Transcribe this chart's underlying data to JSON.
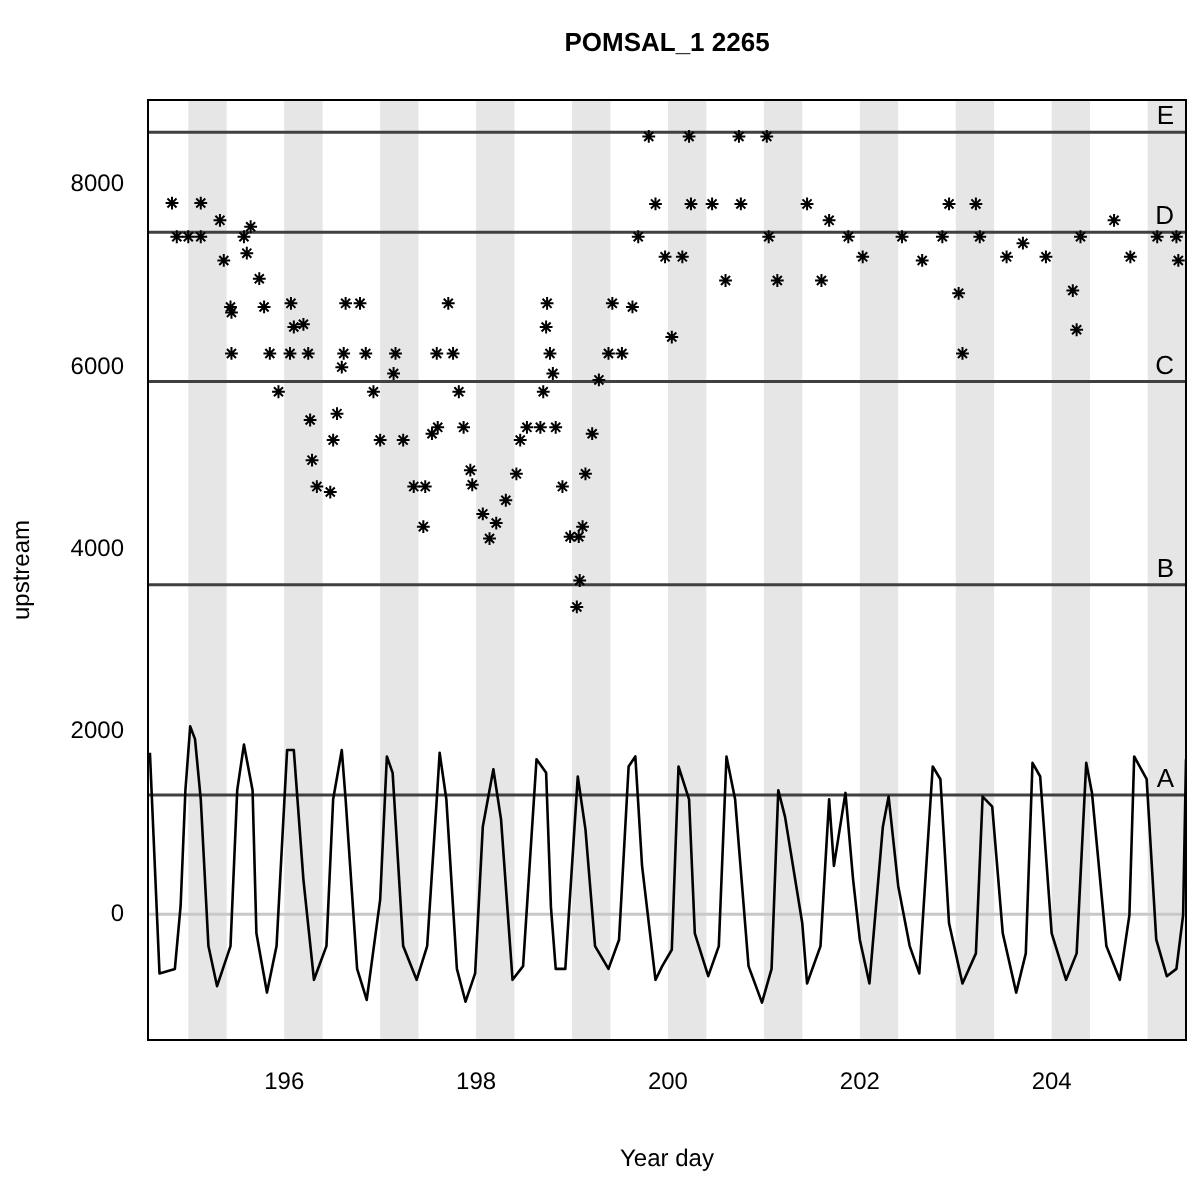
{
  "chart_data": {
    "type": "scatter",
    "title": "POMSAL_1 2265",
    "xlabel": "Year day",
    "ylabel": "upstream",
    "xlim": [
      194.58,
      205.4
    ],
    "xticks": [
      196,
      198,
      200,
      202,
      204
    ],
    "ylim": [
      -1380,
      8930
    ],
    "yticks": [
      0,
      2000,
      4000,
      6000,
      8000
    ],
    "grid": false,
    "legend": false,
    "ref_lines": [
      {
        "axis": "y",
        "value": 0,
        "color": "#c8c8c8"
      },
      {
        "axis": "y",
        "value": 1307,
        "label": "A",
        "color": "#404040"
      },
      {
        "axis": "y",
        "value": 3614,
        "label": "B",
        "color": "#404040"
      },
      {
        "axis": "y",
        "value": 5842,
        "label": "C",
        "color": "#404040"
      },
      {
        "axis": "y",
        "value": 7480,
        "label": "D",
        "color": "#404040"
      },
      {
        "axis": "y",
        "value": 8577,
        "label": "E",
        "color": "#404040"
      }
    ],
    "bands": [
      {
        "axis": "x",
        "from": 195.0,
        "to": 195.4,
        "color": "#e6e6e6"
      },
      {
        "axis": "x",
        "from": 196.0,
        "to": 196.4,
        "color": "#e6e6e6"
      },
      {
        "axis": "x",
        "from": 197.0,
        "to": 197.4,
        "color": "#e6e6e6"
      },
      {
        "axis": "x",
        "from": 198.0,
        "to": 198.4,
        "color": "#e6e6e6"
      },
      {
        "axis": "x",
        "from": 199.0,
        "to": 199.4,
        "color": "#e6e6e6"
      },
      {
        "axis": "x",
        "from": 200.0,
        "to": 200.4,
        "color": "#e6e6e6"
      },
      {
        "axis": "x",
        "from": 201.0,
        "to": 201.4,
        "color": "#e6e6e6"
      },
      {
        "axis": "x",
        "from": 202.0,
        "to": 202.4,
        "color": "#e6e6e6"
      },
      {
        "axis": "x",
        "from": 203.0,
        "to": 203.4,
        "color": "#e6e6e6"
      },
      {
        "axis": "x",
        "from": 204.0,
        "to": 204.4,
        "color": "#e6e6e6"
      },
      {
        "axis": "x",
        "from": 205.0,
        "to": 205.4,
        "color": "#e6e6e6"
      }
    ],
    "series": [
      {
        "type": "scatter",
        "marker": "cross",
        "color": "#000000",
        "x": [
          194.83,
          194.88,
          195.0,
          195.13,
          195.13,
          195.33,
          195.37,
          195.44,
          195.45,
          195.45,
          195.58,
          195.61,
          195.65,
          195.74,
          195.79,
          195.85,
          195.94,
          196.06,
          196.07,
          196.1,
          196.2,
          196.25,
          196.27,
          196.29,
          196.34,
          196.48,
          196.51,
          196.55,
          196.6,
          196.62,
          196.64,
          196.79,
          196.85,
          196.93,
          197.0,
          197.14,
          197.16,
          197.24,
          197.35,
          197.45,
          197.47,
          197.54,
          197.59,
          197.6,
          197.71,
          197.76,
          197.82,
          197.87,
          197.94,
          197.96,
          198.07,
          198.14,
          198.21,
          198.31,
          198.42,
          198.46,
          198.53,
          198.67,
          198.7,
          198.73,
          198.74,
          198.77,
          198.8,
          198.83,
          198.9,
          198.98,
          199.05,
          199.07,
          199.08,
          199.11,
          199.14,
          199.21,
          199.28,
          199.38,
          199.42,
          199.52,
          199.63,
          199.69,
          199.8,
          199.87,
          199.97,
          200.04,
          200.15,
          200.22,
          200.24,
          200.46,
          200.6,
          200.74,
          200.76,
          201.03,
          201.05,
          201.14,
          201.45,
          201.6,
          201.68,
          201.88,
          202.03,
          202.44,
          202.65,
          202.86,
          202.93,
          203.03,
          203.07,
          203.21,
          203.25,
          203.53,
          203.7,
          203.94,
          204.22,
          204.26,
          204.3,
          204.65,
          204.82,
          205.1,
          205.3,
          205.32
        ],
        "values": [
          7800,
          7430,
          7430,
          7430,
          7800,
          7610,
          7170,
          6660,
          6150,
          6600,
          7430,
          7250,
          7540,
          6970,
          6660,
          6150,
          5730,
          6150,
          6700,
          6440,
          6470,
          6150,
          5420,
          4980,
          4690,
          4630,
          5200,
          5490,
          6000,
          6150,
          6700,
          6700,
          6150,
          5730,
          5200,
          5930,
          6150,
          5200,
          4690,
          4250,
          4690,
          5270,
          6150,
          5340,
          6700,
          6150,
          5730,
          5340,
          4870,
          4710,
          4390,
          4120,
          4290,
          4540,
          4830,
          5200,
          5340,
          5340,
          5730,
          6440,
          6700,
          6150,
          5930,
          5340,
          4690,
          4140,
          3370,
          4140,
          3660,
          4250,
          4830,
          5270,
          5860,
          6150,
          6700,
          6150,
          6660,
          7430,
          8530,
          7790,
          7210,
          6330,
          7210,
          8530,
          7790,
          7790,
          6950,
          8530,
          7790,
          8530,
          7430,
          6950,
          7790,
          6950,
          7610,
          7430,
          7210,
          7430,
          7170,
          7430,
          7790,
          6810,
          6150,
          7790,
          7430,
          7210,
          7360,
          7210,
          6840,
          6410,
          7430,
          7610,
          7210,
          7430,
          7430,
          7170
        ]
      },
      {
        "type": "line",
        "marker": "none",
        "color": "#000000",
        "x": [
          194.6,
          194.7,
          194.86,
          194.92,
          194.97,
          195.02,
          195.07,
          195.13,
          195.21,
          195.3,
          195.44,
          195.51,
          195.58,
          195.67,
          195.71,
          195.82,
          195.92,
          196.03,
          196.1,
          196.2,
          196.31,
          196.44,
          196.51,
          196.6,
          196.64,
          196.76,
          196.86,
          197.0,
          197.07,
          197.13,
          197.24,
          197.38,
          197.49,
          197.59,
          197.62,
          197.69,
          197.8,
          197.89,
          197.99,
          198.07,
          198.18,
          198.26,
          198.38,
          198.49,
          198.63,
          198.73,
          198.78,
          198.83,
          198.93,
          199.06,
          199.14,
          199.24,
          199.38,
          199.49,
          199.59,
          199.66,
          199.73,
          199.87,
          199.94,
          200.04,
          200.11,
          200.22,
          200.28,
          200.42,
          200.53,
          200.61,
          200.7,
          200.84,
          200.98,
          201.08,
          201.15,
          201.22,
          201.4,
          201.45,
          201.59,
          201.68,
          201.73,
          201.85,
          201.93,
          202.0,
          202.1,
          202.24,
          202.3,
          202.4,
          202.52,
          202.62,
          202.76,
          202.84,
          202.93,
          203.07,
          203.21,
          203.28,
          203.38,
          203.49,
          203.63,
          203.73,
          203.8,
          203.88,
          204.0,
          204.15,
          204.26,
          204.36,
          204.42,
          204.57,
          204.71,
          204.81,
          204.86,
          204.99,
          205.09,
          205.2,
          205.3,
          205.37,
          205.4
        ],
        "values": [
          1770,
          -650,
          -600,
          90,
          1360,
          2060,
          1920,
          1260,
          -350,
          -790,
          -350,
          1360,
          1860,
          1360,
          -210,
          -860,
          -350,
          1800,
          1800,
          380,
          -720,
          -350,
          1260,
          1800,
          1260,
          -600,
          -940,
          160,
          1730,
          1550,
          -350,
          -720,
          -350,
          1260,
          1770,
          1260,
          -600,
          -960,
          -650,
          960,
          1590,
          1040,
          -720,
          -570,
          1700,
          1550,
          80,
          -600,
          -600,
          1510,
          930,
          -350,
          -600,
          -280,
          1620,
          1730,
          530,
          -720,
          -570,
          -390,
          1620,
          1260,
          -210,
          -680,
          -350,
          1730,
          1260,
          -570,
          -970,
          -600,
          1360,
          1070,
          -100,
          -760,
          -350,
          1260,
          530,
          1330,
          380,
          -280,
          -760,
          960,
          1290,
          310,
          -350,
          -650,
          1620,
          1480,
          -100,
          -760,
          -430,
          1290,
          1180,
          -210,
          -860,
          -430,
          1660,
          1510,
          -210,
          -720,
          -430,
          1660,
          1330,
          -350,
          -720,
          -10,
          1730,
          1480,
          -280,
          -680,
          -600,
          -10,
          1700
        ]
      }
    ]
  }
}
